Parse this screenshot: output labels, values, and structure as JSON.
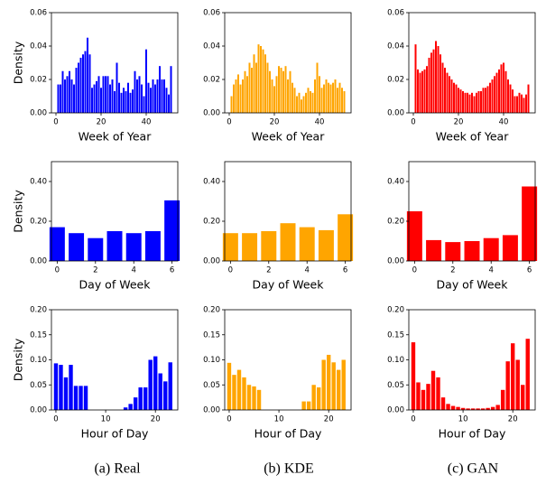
{
  "captions": [
    "(a) Real",
    "(b) KDE",
    "(c) GAN"
  ],
  "chart_data": [
    {
      "type": "bar",
      "xlabel": "Week of Year",
      "ylabel": "Density",
      "color": "#0000ff",
      "x": [
        1,
        2,
        3,
        4,
        5,
        6,
        7,
        8,
        9,
        10,
        11,
        12,
        13,
        14,
        15,
        16,
        17,
        18,
        19,
        20,
        21,
        22,
        23,
        24,
        25,
        26,
        27,
        28,
        29,
        30,
        31,
        32,
        33,
        34,
        35,
        36,
        37,
        38,
        39,
        40,
        41,
        42,
        43,
        44,
        45,
        46,
        47,
        48,
        49,
        50,
        51
      ],
      "values": [
        0.017,
        0.017,
        0.025,
        0.02,
        0.022,
        0.025,
        0.02,
        0.017,
        0.027,
        0.03,
        0.033,
        0.035,
        0.037,
        0.045,
        0.035,
        0.015,
        0.017,
        0.019,
        0.022,
        0.015,
        0.022,
        0.022,
        0.022,
        0.017,
        0.02,
        0.013,
        0.03,
        0.018,
        0.012,
        0.015,
        0.013,
        0.018,
        0.012,
        0.014,
        0.025,
        0.02,
        0.022,
        0.017,
        0.01,
        0.038,
        0.018,
        0.015,
        0.02,
        0.017,
        0.02,
        0.028,
        0.02,
        0.02,
        0.015,
        0.011,
        0.028
      ],
      "xlim": [
        -2,
        54
      ],
      "ylim": [
        0,
        0.06
      ],
      "xticks": [
        0,
        20,
        40
      ],
      "yticks": [
        {
          "value": 0,
          "label": "0.00"
        },
        {
          "value": 0.02,
          "label": "0.02"
        },
        {
          "value": 0.04,
          "label": "0.04"
        },
        {
          "value": 0.06,
          "label": "0.06"
        }
      ]
    },
    {
      "type": "bar",
      "xlabel": "Week of Year",
      "color": "#ffa500",
      "x": [
        1,
        2,
        3,
        4,
        5,
        6,
        7,
        8,
        9,
        10,
        11,
        12,
        13,
        14,
        15,
        16,
        17,
        18,
        19,
        20,
        21,
        22,
        23,
        24,
        25,
        26,
        27,
        28,
        29,
        30,
        31,
        32,
        33,
        34,
        35,
        36,
        37,
        38,
        39,
        40,
        41,
        42,
        43,
        44,
        45,
        46,
        47,
        48,
        49,
        50,
        51
      ],
      "values": [
        0.01,
        0.017,
        0.02,
        0.023,
        0.017,
        0.02,
        0.025,
        0.022,
        0.03,
        0.027,
        0.035,
        0.03,
        0.041,
        0.04,
        0.038,
        0.035,
        0.03,
        0.025,
        0.02,
        0.016,
        0.022,
        0.028,
        0.027,
        0.025,
        0.028,
        0.02,
        0.025,
        0.018,
        0.015,
        0.01,
        0.012,
        0.008,
        0.01,
        0.012,
        0.015,
        0.013,
        0.012,
        0.02,
        0.03,
        0.022,
        0.015,
        0.017,
        0.02,
        0.018,
        0.017,
        0.018,
        0.02,
        0.015,
        0.018,
        0.015,
        0.013
      ],
      "xlim": [
        -2,
        54
      ],
      "ylim": [
        0,
        0.06
      ],
      "xticks": [
        0,
        20,
        40
      ],
      "yticks": [
        {
          "value": 0,
          "label": "0.00"
        },
        {
          "value": 0.02,
          "label": "0.02"
        },
        {
          "value": 0.04,
          "label": "0.04"
        },
        {
          "value": 0.06,
          "label": "0.06"
        }
      ]
    },
    {
      "type": "bar",
      "xlabel": "Week of Year",
      "color": "#ff0000",
      "x": [
        1,
        2,
        3,
        4,
        5,
        6,
        7,
        8,
        9,
        10,
        11,
        12,
        13,
        14,
        15,
        16,
        17,
        18,
        19,
        20,
        21,
        22,
        23,
        24,
        25,
        26,
        27,
        28,
        29,
        30,
        31,
        32,
        33,
        34,
        35,
        36,
        37,
        38,
        39,
        40,
        41,
        42,
        43,
        44,
        45,
        46,
        47,
        48,
        49,
        50,
        51
      ],
      "values": [
        0.041,
        0.026,
        0.024,
        0.025,
        0.026,
        0.028,
        0.033,
        0.036,
        0.038,
        0.043,
        0.04,
        0.035,
        0.03,
        0.027,
        0.024,
        0.022,
        0.02,
        0.018,
        0.017,
        0.015,
        0.014,
        0.013,
        0.012,
        0.012,
        0.011,
        0.012,
        0.01,
        0.012,
        0.013,
        0.013,
        0.015,
        0.015,
        0.016,
        0.018,
        0.02,
        0.022,
        0.024,
        0.026,
        0.029,
        0.03,
        0.025,
        0.02,
        0.017,
        0.014,
        0.01,
        0.01,
        0.012,
        0.011,
        0.009,
        0.011,
        0.017
      ],
      "xlim": [
        -2,
        54
      ],
      "ylim": [
        0,
        0.06
      ],
      "xticks": [
        0,
        20,
        40
      ],
      "yticks": [
        {
          "value": 0,
          "label": "0.00"
        },
        {
          "value": 0.02,
          "label": "0.02"
        },
        {
          "value": 0.04,
          "label": "0.04"
        },
        {
          "value": 0.06,
          "label": "0.06"
        }
      ]
    },
    {
      "type": "bar",
      "xlabel": "Day of Week",
      "ylabel": "Density",
      "color": "#0000ff",
      "x": [
        0,
        1,
        2,
        3,
        4,
        5,
        6
      ],
      "values": [
        0.17,
        0.14,
        0.115,
        0.15,
        0.14,
        0.15,
        0.305
      ],
      "xlim": [
        -0.3,
        6.3
      ],
      "ylim": [
        0,
        0.5
      ],
      "xticks": [
        0,
        2,
        4,
        6
      ],
      "yticks": [
        {
          "value": 0,
          "label": "0.00"
        },
        {
          "value": 0.2,
          "label": "0.20"
        },
        {
          "value": 0.4,
          "label": "0.40"
        }
      ]
    },
    {
      "type": "bar",
      "xlabel": "Day of Week",
      "color": "#ffa500",
      "x": [
        0,
        1,
        2,
        3,
        4,
        5,
        6
      ],
      "values": [
        0.14,
        0.14,
        0.15,
        0.19,
        0.17,
        0.155,
        0.235
      ],
      "xlim": [
        -0.3,
        6.3
      ],
      "ylim": [
        0,
        0.5
      ],
      "xticks": [
        0,
        2,
        4,
        6
      ],
      "yticks": [
        {
          "value": 0,
          "label": "0.00"
        },
        {
          "value": 0.2,
          "label": "0.20"
        },
        {
          "value": 0.4,
          "label": "0.40"
        }
      ]
    },
    {
      "type": "bar",
      "xlabel": "Day of Week",
      "color": "#ff0000",
      "x": [
        0,
        1,
        2,
        3,
        4,
        5,
        6
      ],
      "values": [
        0.25,
        0.105,
        0.095,
        0.1,
        0.115,
        0.13,
        0.375
      ],
      "xlim": [
        -0.3,
        6.3
      ],
      "ylim": [
        0,
        0.5
      ],
      "xticks": [
        0,
        2,
        4,
        6
      ],
      "yticks": [
        {
          "value": 0,
          "label": "0.00"
        },
        {
          "value": 0.2,
          "label": "0.20"
        },
        {
          "value": 0.4,
          "label": "0.40"
        }
      ]
    },
    {
      "type": "bar",
      "xlabel": "Hour of Day",
      "ylabel": "Density",
      "color": "#0000ff",
      "x": [
        0,
        1,
        2,
        3,
        4,
        5,
        6,
        7,
        8,
        9,
        10,
        11,
        12,
        13,
        14,
        15,
        16,
        17,
        18,
        19,
        20,
        21,
        22,
        23
      ],
      "values": [
        0.093,
        0.09,
        0.065,
        0.09,
        0.048,
        0.048,
        0.048,
        0,
        0,
        0,
        0,
        0,
        0,
        0,
        0.005,
        0.012,
        0.025,
        0.045,
        0.045,
        0.1,
        0.107,
        0.073,
        0.057,
        0.095
      ],
      "xlim": [
        -0.9,
        24.5
      ],
      "ylim": [
        0,
        0.2
      ],
      "xticks": [
        0,
        10,
        20
      ],
      "yticks": [
        {
          "value": 0,
          "label": "0.00"
        },
        {
          "value": 0.05,
          "label": "0.05"
        },
        {
          "value": 0.1,
          "label": "0.10"
        },
        {
          "value": 0.15,
          "label": "0.15"
        },
        {
          "value": 0.2,
          "label": "0.20"
        }
      ]
    },
    {
      "type": "bar",
      "xlabel": "Hour of Day",
      "color": "#ffa500",
      "x": [
        0,
        1,
        2,
        3,
        4,
        5,
        6,
        7,
        8,
        9,
        10,
        11,
        12,
        13,
        14,
        15,
        16,
        17,
        18,
        19,
        20,
        21,
        22,
        23
      ],
      "values": [
        0.094,
        0.07,
        0.08,
        0.065,
        0.05,
        0.047,
        0.04,
        0,
        0,
        0,
        0,
        0,
        0,
        0,
        0,
        0.017,
        0.017,
        0.05,
        0.045,
        0.1,
        0.11,
        0.095,
        0.08,
        0.1
      ],
      "xlim": [
        -0.9,
        24.5
      ],
      "ylim": [
        0,
        0.2
      ],
      "xticks": [
        0,
        10,
        20
      ],
      "yticks": [
        {
          "value": 0,
          "label": "0.00"
        },
        {
          "value": 0.05,
          "label": "0.05"
        },
        {
          "value": 0.1,
          "label": "0.10"
        },
        {
          "value": 0.15,
          "label": "0.15"
        },
        {
          "value": 0.2,
          "label": "0.20"
        }
      ]
    },
    {
      "type": "bar",
      "xlabel": "Hour of Day",
      "color": "#ff0000",
      "x": [
        0,
        1,
        2,
        3,
        4,
        5,
        6,
        7,
        8,
        9,
        10,
        11,
        12,
        13,
        14,
        15,
        16,
        17,
        18,
        19,
        20,
        21,
        22,
        23
      ],
      "values": [
        0.135,
        0.055,
        0.04,
        0.052,
        0.078,
        0.065,
        0.025,
        0.012,
        0.008,
        0.006,
        0.004,
        0.003,
        0.003,
        0.003,
        0.003,
        0.004,
        0.006,
        0.01,
        0.04,
        0.097,
        0.133,
        0.1,
        0.05,
        0.142
      ],
      "xlim": [
        -0.9,
        24.5
      ],
      "ylim": [
        0,
        0.2
      ],
      "xticks": [
        0,
        10,
        20
      ],
      "yticks": [
        {
          "value": 0,
          "label": "0.00"
        },
        {
          "value": 0.05,
          "label": "0.05"
        },
        {
          "value": 0.1,
          "label": "0.10"
        },
        {
          "value": 0.15,
          "label": "0.15"
        },
        {
          "value": 0.2,
          "label": "0.20"
        }
      ]
    }
  ]
}
